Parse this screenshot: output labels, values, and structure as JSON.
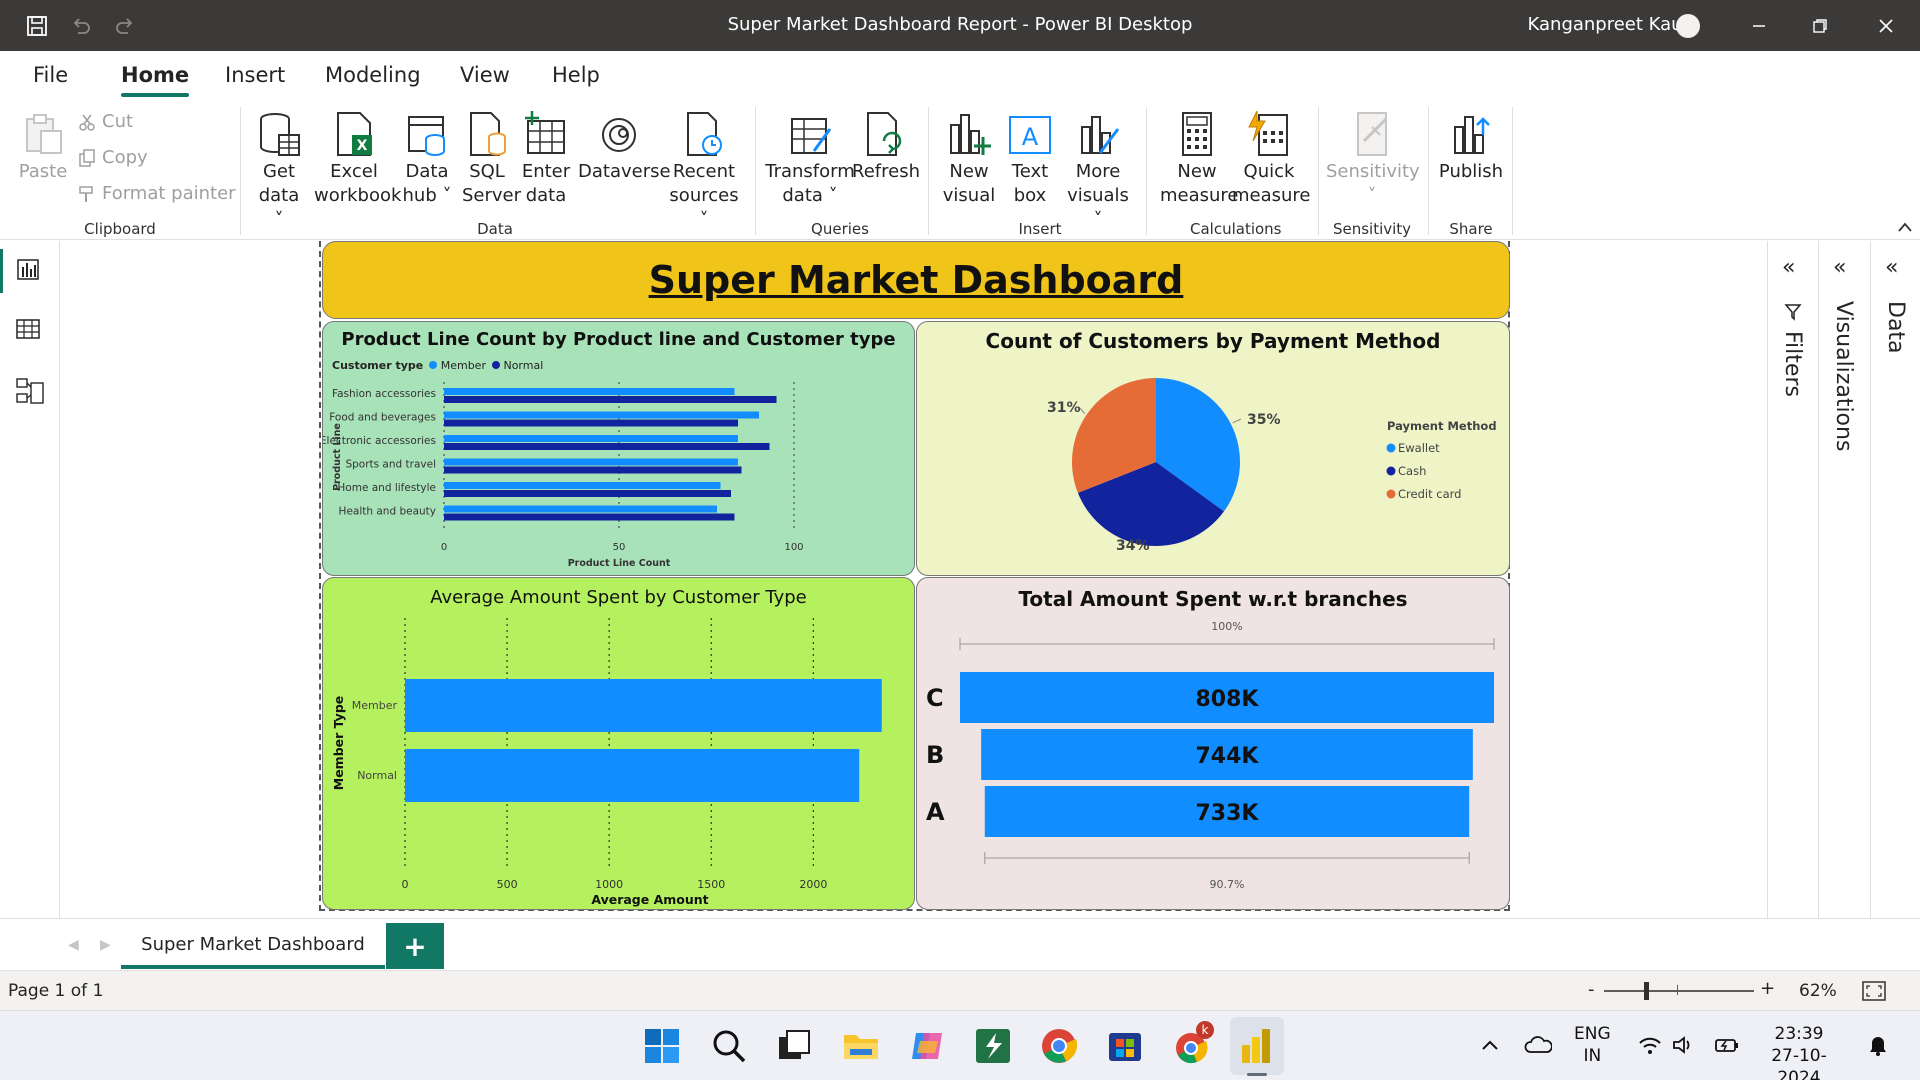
{
  "window": {
    "title": "Super Market Dashboard Report - Power BI Desktop",
    "user": "Kanganpreet Kaur"
  },
  "menu": [
    "File",
    "Home",
    "Insert",
    "Modeling",
    "View",
    "Help"
  ],
  "ribbon": {
    "clipboard": {
      "paste": "Paste",
      "cut": "Cut",
      "copy": "Copy",
      "format_painter": "Format painter",
      "group": "Clipboard"
    },
    "data": {
      "get_data_1": "Get",
      "get_data_2": "data",
      "excel_1": "Excel",
      "excel_2": "workbook",
      "hub_1": "Data",
      "hub_2": "hub",
      "sql_1": "SQL",
      "sql_2": "Server",
      "enter_1": "Enter",
      "enter_2": "data",
      "dataverse": "Dataverse",
      "recent_1": "Recent",
      "recent_2": "sources",
      "group": "Data"
    },
    "queries": {
      "transform_1": "Transform",
      "transform_2": "data",
      "refresh": "Refresh",
      "group": "Queries"
    },
    "insert": {
      "newvisual_1": "New",
      "newvisual_2": "visual",
      "textbox_1": "Text",
      "textbox_2": "box",
      "more_1": "More",
      "more_2": "visuals",
      "group": "Insert"
    },
    "calculations": {
      "newmeasure_1": "New",
      "newmeasure_2": "measure",
      "quick_1": "Quick",
      "quick_2": "measure",
      "group": "Calculations"
    },
    "sensitivity": {
      "label": "Sensitivity",
      "group": "Sensitivity"
    },
    "share": {
      "publish": "Publish",
      "group": "Share"
    }
  },
  "dashboard": {
    "title": "Super Market Dashboard"
  },
  "chart_data": [
    {
      "type": "bar",
      "title": "Product Line Count by Product line and Customer type",
      "legend_title": "Customer type",
      "categories": [
        "Fashion accessories",
        "Food and beverages",
        "Electronic accessories",
        "Sports and travel",
        "Home and lifestyle",
        "Health and beauty"
      ],
      "series": [
        {
          "name": "Member",
          "color": "#118dff",
          "values": [
            83,
            90,
            84,
            84,
            79,
            78
          ]
        },
        {
          "name": "Normal",
          "color": "#12239e",
          "values": [
            95,
            84,
            93,
            85,
            82,
            83
          ]
        }
      ],
      "xlabel": "Product Line Count",
      "ylabel": "Product Line",
      "xlim": [
        0,
        100
      ],
      "xticks": [
        "0",
        "50",
        "100"
      ]
    },
    {
      "type": "pie",
      "title": "Count of Customers by Payment Method",
      "legend_title": "Payment Method",
      "slices": [
        {
          "name": "Ewallet",
          "value": 35,
          "label": "35%",
          "color": "#118dff"
        },
        {
          "name": "Cash",
          "value": 34,
          "label": "34%",
          "color": "#12239e"
        },
        {
          "name": "Credit card",
          "value": 31,
          "label": "31%",
          "color": "#e66c37"
        }
      ]
    },
    {
      "type": "bar",
      "title": "Average Amount Spent by Customer Type",
      "categories": [
        "Member",
        "Normal"
      ],
      "values": [
        2335,
        2225
      ],
      "color": "#118dff",
      "xlabel": "Average Amount",
      "ylabel": "Member Type",
      "xlim": [
        0,
        2400
      ],
      "xticks": [
        "0",
        "500",
        "1000",
        "1500",
        "2000"
      ]
    },
    {
      "type": "funnel",
      "title": "Total Amount Spent w.r.t branches",
      "categories": [
        "C",
        "B",
        "A"
      ],
      "values": [
        808,
        744,
        733
      ],
      "labels": [
        "808K",
        "744K",
        "733K"
      ],
      "top_label": "100%",
      "bottom_label": "90.7%",
      "color": "#118dff"
    }
  ],
  "panes": {
    "filters": "Filters",
    "visualizations": "Visualizations",
    "data": "Data"
  },
  "pagetab": {
    "name": "Super Market Dashboard",
    "add": "+"
  },
  "status": {
    "page": "Page 1 of 1",
    "zoom": "62%"
  },
  "taskbar": {
    "lang_1": "ENG",
    "lang_2": "IN",
    "time": "23:39",
    "date": "27-10-2024",
    "badge": "k"
  }
}
